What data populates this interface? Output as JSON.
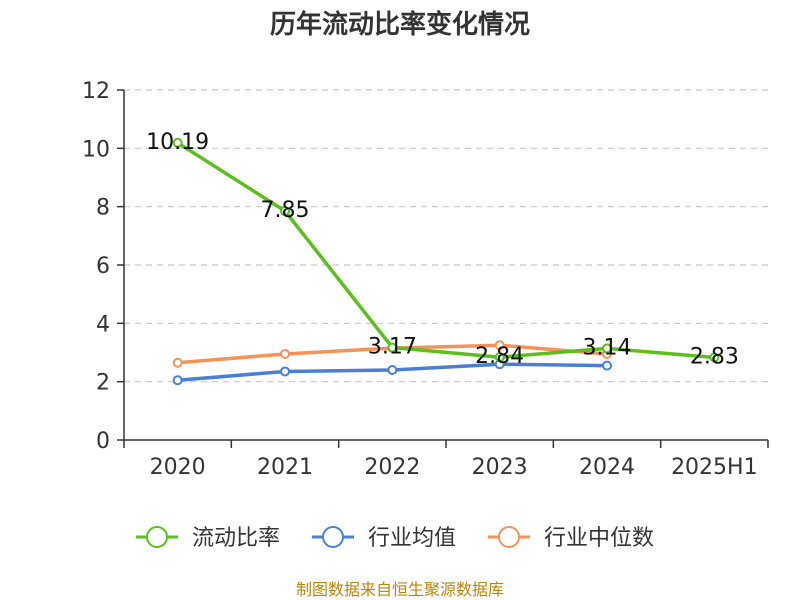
{
  "chart_data": {
    "type": "line",
    "title": "历年流动比率变化情况",
    "categories": [
      "2020",
      "2021",
      "2022",
      "2023",
      "2024",
      "2025H1"
    ],
    "ylim": [
      0,
      12
    ],
    "yticks": [
      0,
      2,
      4,
      6,
      8,
      10,
      12
    ],
    "grid": true,
    "legend_position": "bottom",
    "series": [
      {
        "name": "流动比率",
        "color": "#5bbf1e",
        "values": [
          10.19,
          7.85,
          3.17,
          2.84,
          3.14,
          2.83
        ],
        "labels": [
          "10.19",
          "7.85",
          "3.17",
          "2.84",
          "3.14",
          "2.83"
        ]
      },
      {
        "name": "行业均值",
        "color": "#4a7fd4",
        "values": [
          2.05,
          2.35,
          2.4,
          2.6,
          2.55,
          null
        ]
      },
      {
        "name": "行业中位数",
        "color": "#f4925a",
        "values": [
          2.65,
          2.95,
          3.15,
          3.25,
          2.95,
          null
        ]
      }
    ]
  },
  "footer": {
    "source": "制图数据来自恒生聚源数据库"
  }
}
